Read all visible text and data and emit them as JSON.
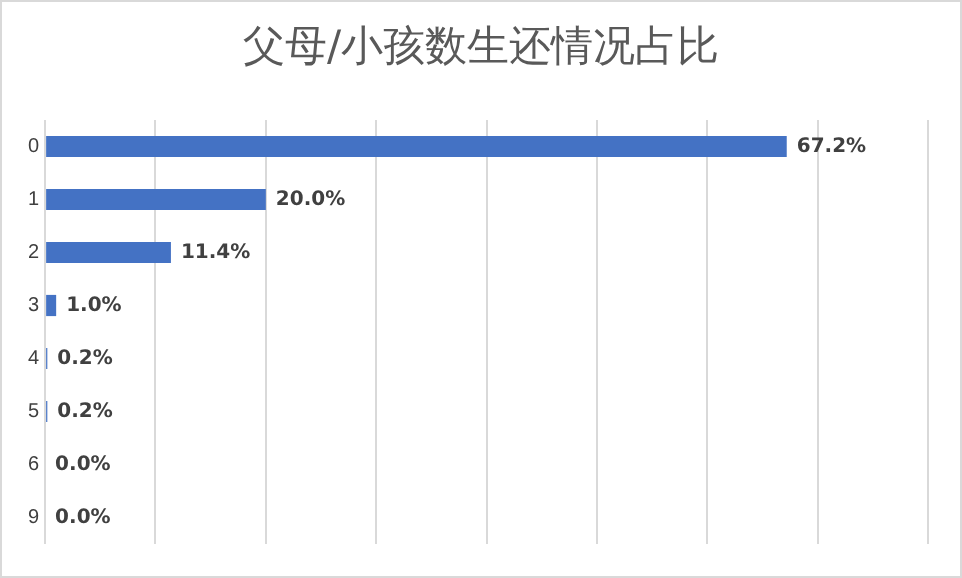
{
  "chart_data": {
    "type": "bar",
    "title": "父母/小孩数生还情况占比",
    "orientation": "horizontal",
    "categories": [
      "0",
      "1",
      "2",
      "3",
      "4",
      "5",
      "6",
      "9"
    ],
    "values": [
      67.2,
      20.0,
      11.4,
      1.0,
      0.2,
      0.2,
      0.0,
      0.0
    ],
    "value_labels": [
      "67.2%",
      "20.0%",
      "11.4%",
      "1.0%",
      "0.2%",
      "0.2%",
      "0.0%",
      "0.0%"
    ],
    "color": "#4472c4",
    "xlim": [
      0,
      80
    ],
    "xticks": [
      {
        "value": 0,
        "label": null
      },
      {
        "value": 10,
        "label": null
      },
      {
        "value": 20,
        "label": null
      },
      {
        "value": 30,
        "label": null
      },
      {
        "value": 40,
        "label": null
      },
      {
        "value": 50,
        "label": null
      },
      {
        "value": 60,
        "label": null
      },
      {
        "value": 70,
        "label": null
      },
      {
        "value": 80,
        "label": null
      }
    ],
    "grid": "x",
    "tick_labels": "y",
    "legend": false
  }
}
